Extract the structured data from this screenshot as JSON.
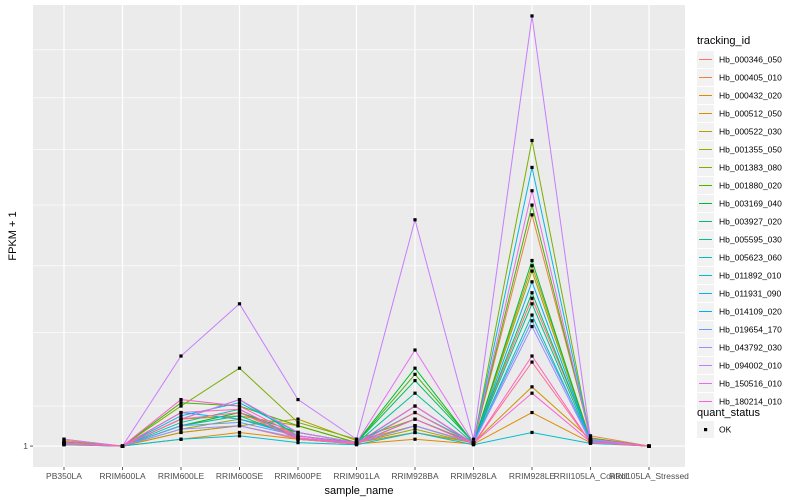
{
  "chart_data": {
    "type": "line",
    "xlabel": "sample_name",
    "ylabel": "FPKM + 1",
    "y_ticks": [
      {
        "value": 1,
        "label": "1"
      }
    ],
    "y_scale": "log",
    "ylim": [
      0.97,
      1.9
    ],
    "grid": true,
    "legend_position": "right",
    "categories": [
      "PB350LA",
      "RRIM600LA",
      "RRIM600LE",
      "RRIM600SE",
      "RRIM600PE",
      "RRIM901LA",
      "RRIM928BA",
      "RRIM928LA",
      "RRIM928LE",
      "RRII105LA_Control",
      "RRII105LA_Stressed"
    ],
    "series_legend_title": "tracking_id",
    "series": [
      {
        "name": "Hb_000346_050",
        "color": "#F8766D",
        "values": [
          1.005,
          1.0,
          1.02,
          1.03,
          1.01,
          1.005,
          1.02,
          1.005,
          1.24,
          1.01,
          1.0
        ]
      },
      {
        "name": "Hb_000405_010",
        "color": "#EE8043",
        "values": [
          1.008,
          1.0,
          1.03,
          1.05,
          1.015,
          1.005,
          1.03,
          1.005,
          1.4,
          1.015,
          1.0
        ]
      },
      {
        "name": "Hb_000432_020",
        "color": "#E18A00",
        "values": [
          1.003,
          1.0,
          1.01,
          1.02,
          1.01,
          1.003,
          1.01,
          1.003,
          1.05,
          1.005,
          1.0
        ]
      },
      {
        "name": "Hb_000512_050",
        "color": "#CF9400",
        "values": [
          1.006,
          1.0,
          1.04,
          1.045,
          1.03,
          1.005,
          1.02,
          1.005,
          1.09,
          1.01,
          1.0
        ]
      },
      {
        "name": "Hb_000522_030",
        "color": "#B99E00",
        "values": [
          1.01,
          1.0,
          1.02,
          1.03,
          1.04,
          1.008,
          1.03,
          1.005,
          1.3,
          1.01,
          1.0
        ]
      },
      {
        "name": "Hb_001355_050",
        "color": "#9DA700",
        "values": [
          1.004,
          1.0,
          1.025,
          1.04,
          1.02,
          1.005,
          1.025,
          1.004,
          1.29,
          1.008,
          1.0
        ]
      },
      {
        "name": "Hb_001383_080",
        "color": "#7AAF00",
        "values": [
          1.005,
          1.0,
          1.06,
          1.12,
          1.035,
          1.01,
          1.04,
          1.005,
          1.56,
          1.01,
          1.0
        ]
      },
      {
        "name": "Hb_001880_020",
        "color": "#45B500",
        "values": [
          1.006,
          1.0,
          1.065,
          1.06,
          1.03,
          1.005,
          1.11,
          1.005,
          1.42,
          1.012,
          1.0
        ]
      },
      {
        "name": "Hb_003169_040",
        "color": "#00BA38",
        "values": [
          1.003,
          1.0,
          1.03,
          1.05,
          1.02,
          1.005,
          1.12,
          1.004,
          1.31,
          1.006,
          1.0
        ]
      },
      {
        "name": "Hb_003927_020",
        "color": "#00BD6D",
        "values": [
          1.004,
          1.0,
          1.04,
          1.07,
          1.015,
          1.005,
          1.1,
          1.005,
          1.25,
          1.008,
          1.0
        ]
      },
      {
        "name": "Hb_005595_030",
        "color": "#00BF93",
        "values": [
          1.003,
          1.0,
          1.03,
          1.045,
          1.012,
          1.004,
          1.08,
          1.004,
          1.23,
          1.006,
          1.0
        ]
      },
      {
        "name": "Hb_005623_060",
        "color": "#00C0B4",
        "values": [
          1.002,
          1.0,
          1.035,
          1.055,
          1.01,
          1.003,
          1.06,
          1.003,
          1.21,
          1.005,
          1.0
        ]
      },
      {
        "name": "Hb_011892_010",
        "color": "#00BED1",
        "values": [
          1.002,
          1.0,
          1.01,
          1.015,
          1.005,
          1.002,
          1.02,
          1.002,
          1.02,
          1.004,
          1.0
        ]
      },
      {
        "name": "Hb_011931_090",
        "color": "#00B8E7",
        "values": [
          1.005,
          1.0,
          1.045,
          1.065,
          1.02,
          1.005,
          1.05,
          1.005,
          1.5,
          1.01,
          1.0
        ]
      },
      {
        "name": "Hb_014109_020",
        "color": "#00AEFA",
        "values": [
          1.004,
          1.0,
          1.05,
          1.04,
          1.015,
          1.004,
          1.04,
          1.004,
          1.27,
          1.008,
          1.0
        ]
      },
      {
        "name": "Hb_019654_170",
        "color": "#619CFF",
        "values": [
          1.004,
          1.0,
          1.03,
          1.035,
          1.015,
          1.004,
          1.03,
          1.004,
          1.2,
          1.008,
          1.0
        ]
      },
      {
        "name": "Hb_043792_030",
        "color": "#9A8EFF",
        "values": [
          1.003,
          1.0,
          1.025,
          1.03,
          1.012,
          1.004,
          1.03,
          1.004,
          1.19,
          1.006,
          1.0
        ]
      },
      {
        "name": "Hb_094002_010",
        "color": "#C77CFF",
        "values": [
          1.01,
          1.0,
          1.14,
          1.23,
          1.07,
          1.01,
          1.39,
          1.01,
          1.87,
          1.01,
          1.0
        ]
      },
      {
        "name": "Hb_150516_010",
        "color": "#E66DF3",
        "values": [
          1.005,
          1.0,
          1.04,
          1.07,
          1.02,
          1.005,
          1.15,
          1.005,
          1.45,
          1.01,
          1.0
        ]
      },
      {
        "name": "Hb_180214_010",
        "color": "#FC61D5",
        "values": [
          1.004,
          1.0,
          1.07,
          1.06,
          1.015,
          1.004,
          1.06,
          1.004,
          1.08,
          1.006,
          1.0
        ]
      },
      {
        "name": "",
        "color": "#FF62BC",
        "values": [
          1.003,
          1.0,
          1.05,
          1.055,
          1.012,
          1.003,
          1.04,
          1.003,
          1.14,
          1.005,
          1.0
        ]
      },
      {
        "name": "",
        "color": "#FF6C90",
        "values": [
          1.003,
          1.0,
          1.04,
          1.05,
          1.01,
          1.003,
          1.05,
          1.003,
          1.13,
          1.005,
          1.0
        ]
      }
    ],
    "shape_legend_title": "quant_status",
    "shape_legend": [
      {
        "label": "OK",
        "shape": "square",
        "color": "#000000"
      }
    ],
    "colors": {
      "panel": "#EBEBEB",
      "grid": "#FFFFFF",
      "background": "#FFFFFF",
      "point": "#000000"
    }
  }
}
